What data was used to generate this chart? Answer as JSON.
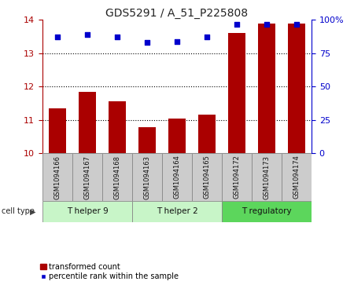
{
  "title": "GDS5291 / A_51_P225808",
  "samples": [
    "GSM1094166",
    "GSM1094167",
    "GSM1094168",
    "GSM1094163",
    "GSM1094164",
    "GSM1094165",
    "GSM1094172",
    "GSM1094173",
    "GSM1094174"
  ],
  "transformed_counts": [
    11.35,
    11.85,
    11.55,
    10.78,
    11.05,
    11.15,
    13.6,
    13.9,
    13.9
  ],
  "percentile_ranks": [
    87,
    89,
    87,
    83,
    84,
    87,
    97,
    97,
    97
  ],
  "ylim_left": [
    10,
    14
  ],
  "ylim_right": [
    0,
    100
  ],
  "yticks_left": [
    10,
    11,
    12,
    13,
    14
  ],
  "yticks_right": [
    0,
    25,
    50,
    75,
    100
  ],
  "yticklabels_right": [
    "0",
    "25",
    "50",
    "75",
    "100%"
  ],
  "cell_groups": [
    {
      "label": "T helper 9",
      "indices": [
        0,
        1,
        2
      ]
    },
    {
      "label": "T helper 2",
      "indices": [
        3,
        4,
        5
      ]
    },
    {
      "label": "T regulatory",
      "indices": [
        6,
        7,
        8
      ]
    }
  ],
  "group_colors": [
    "#C8F5C8",
    "#C8F5C8",
    "#5CD65C"
  ],
  "bar_color": "#AA0000",
  "dot_color": "#0000CC",
  "bar_bottom": 10,
  "grid_color": "#000000",
  "bg_color": "#FFFFFF",
  "sample_box_color": "#CCCCCC",
  "legend_bar_label": "transformed count",
  "legend_dot_label": "percentile rank within the sample",
  "cell_type_label": "cell type",
  "ytick_left_fontsize": 8,
  "ytick_right_fontsize": 8,
  "title_fontsize": 10,
  "label_fontsize": 6,
  "group_fontsize": 7.5,
  "legend_fontsize": 7
}
